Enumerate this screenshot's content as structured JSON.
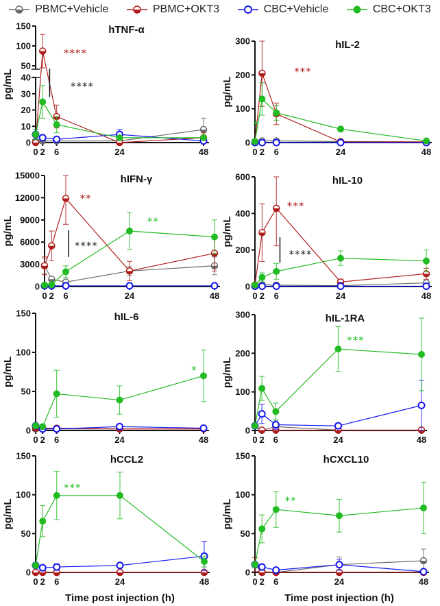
{
  "legend": [
    {
      "name": "PBMC+Vehicle",
      "color": "#6b6b6b",
      "marker": "half-filled-circle"
    },
    {
      "name": "PBMC+OKT3",
      "color": "#b01c1c",
      "marker": "half-filled-circle"
    },
    {
      "name": "CBC+Vehicle",
      "color": "#1515f0",
      "marker": "open-circle"
    },
    {
      "name": "CBC+OKT3",
      "color": "#22bb22",
      "marker": "filled-circle"
    }
  ],
  "chart_data": [
    {
      "type": "line",
      "title": "hTNF-α",
      "ylabel": "pg/mL",
      "xlabel": "",
      "x": [
        0,
        2,
        6,
        24,
        48
      ],
      "xticks": [
        "0",
        "2",
        "6",
        "24",
        "48"
      ],
      "ylim": [
        0,
        150
      ],
      "axis_break": [
        40,
        50
      ],
      "yticks": [
        "0",
        "10",
        "20",
        "30",
        "40",
        "50",
        "100",
        "150"
      ],
      "series": [
        {
          "name": "PBMC+Vehicle",
          "values": [
            1,
            1,
            1,
            1,
            8
          ],
          "error": [
            0,
            0,
            0,
            0,
            7
          ]
        },
        {
          "name": "PBMC+OKT3",
          "values": [
            0,
            87,
            16,
            0,
            3
          ],
          "error": [
            0,
            42,
            7,
            0,
            3
          ]
        },
        {
          "name": "CBC+Vehicle",
          "values": [
            5,
            3,
            2,
            5,
            1
          ],
          "error": [
            3,
            0.5,
            0.5,
            3,
            0
          ]
        },
        {
          "name": "CBC+OKT3",
          "values": [
            5,
            25,
            11,
            3,
            3
          ],
          "error": [
            3,
            10,
            5,
            1,
            1
          ]
        }
      ],
      "annotations": [
        {
          "text": "****",
          "x": 8,
          "y": 84,
          "color": "#b01c1c"
        },
        {
          "text": "****",
          "x": 10,
          "y": 35,
          "color": "#222222",
          "bracket": [
            4,
            43,
            28
          ]
        }
      ]
    },
    {
      "type": "line",
      "title": "hIL-2",
      "ylabel": "pg/mL",
      "xlabel": "",
      "x": [
        0,
        2,
        6,
        24,
        48
      ],
      "xticks": [
        "0",
        "2",
        "6",
        "24",
        "48"
      ],
      "ylim": [
        0,
        300
      ],
      "yticks": [
        "0",
        "100",
        "200",
        "300"
      ],
      "series": [
        {
          "name": "PBMC+Vehicle",
          "values": [
            3,
            5,
            5,
            3,
            2
          ],
          "error": [
            0,
            0,
            0,
            0,
            0
          ]
        },
        {
          "name": "PBMC+OKT3",
          "values": [
            2,
            205,
            85,
            2,
            2
          ],
          "error": [
            0,
            98,
            32,
            0,
            0
          ]
        },
        {
          "name": "CBC+Vehicle",
          "values": [
            0,
            0,
            0,
            0,
            0
          ],
          "error": [
            0,
            0,
            0,
            0,
            0
          ]
        },
        {
          "name": "CBC+OKT3",
          "values": [
            3,
            129,
            88,
            40,
            5
          ],
          "error": [
            0,
            48,
            22,
            7,
            0
          ]
        }
      ],
      "annotations": [
        {
          "text": "***",
          "x": 11,
          "y": 212,
          "color": "#b01c1c"
        },
        {
          "text": "*",
          "x": -0.5,
          "y": 55,
          "color": "#22bb22"
        }
      ]
    },
    {
      "type": "line",
      "title": "hIFN-γ",
      "ylabel": "pg/mL",
      "xlabel": "",
      "x": [
        0,
        2,
        6,
        24,
        48
      ],
      "xticks": [
        "0",
        "2",
        "6",
        "24",
        "48"
      ],
      "ylim": [
        0,
        15000
      ],
      "yticks": [
        "0",
        "3000",
        "6000",
        "9000",
        "12000",
        "15000"
      ],
      "series": [
        {
          "name": "PBMC+Vehicle",
          "values": [
            2800,
            1000,
            600,
            2100,
            2800
          ],
          "error": [
            1000,
            200,
            200,
            600,
            1200
          ]
        },
        {
          "name": "PBMC+OKT3",
          "values": [
            2800,
            5500,
            11900,
            2100,
            4500
          ],
          "error": [
            1200,
            2000,
            3500,
            1300,
            2400
          ]
        },
        {
          "name": "CBC+Vehicle",
          "values": [
            100,
            100,
            100,
            100,
            100
          ],
          "error": [
            0,
            0,
            0,
            0,
            0
          ]
        },
        {
          "name": "CBC+OKT3",
          "values": [
            200,
            250,
            2000,
            7500,
            6700
          ],
          "error": [
            0,
            0,
            800,
            2500,
            2300
          ]
        }
      ],
      "annotations": [
        {
          "text": "**",
          "x": 10,
          "y": 12000,
          "color": "#b01c1c"
        },
        {
          "text": "**",
          "x": 29,
          "y": 8900,
          "color": "#22bb22"
        },
        {
          "text": "****",
          "x": 8.5,
          "y": 5600,
          "color": "#222222",
          "bracket": [
            6.8,
            7600,
            4000
          ]
        }
      ]
    },
    {
      "type": "line",
      "title": "hIL-10",
      "ylabel": "pg/mL",
      "xlabel": "",
      "x": [
        0,
        2,
        6,
        24,
        48
      ],
      "xticks": [
        "0",
        "2",
        "6",
        "24",
        "48"
      ],
      "ylim": [
        0,
        600
      ],
      "yticks": [
        "0",
        "200",
        "400",
        "600"
      ],
      "series": [
        {
          "name": "PBMC+Vehicle",
          "values": [
            8,
            10,
            8,
            5,
            20
          ],
          "error": [
            0,
            3,
            2,
            2,
            5
          ]
        },
        {
          "name": "PBMC+OKT3",
          "values": [
            8,
            295,
            428,
            25,
            70
          ],
          "error": [
            0,
            158,
            205,
            15,
            30
          ]
        },
        {
          "name": "CBC+Vehicle",
          "values": [
            2,
            2,
            2,
            2,
            2
          ],
          "error": [
            0,
            0,
            0,
            0,
            0
          ]
        },
        {
          "name": "CBC+OKT3",
          "values": [
            8,
            50,
            83,
            155,
            140
          ],
          "error": [
            0,
            25,
            43,
            40,
            60
          ]
        }
      ],
      "annotations": [
        {
          "text": "***",
          "x": 9,
          "y": 445,
          "color": "#b01c1c"
        },
        {
          "text": "****",
          "x": 9.5,
          "y": 180,
          "color": "#222222",
          "bracket": [
            7,
            270,
            130
          ]
        }
      ]
    },
    {
      "type": "line",
      "title": "hIL-6",
      "ylabel": "pg/mL",
      "xlabel": "",
      "x": [
        0,
        2,
        6,
        24,
        48
      ],
      "xticks": [
        "0",
        "2",
        "6",
        "24",
        "48"
      ],
      "ylim": [
        0,
        150
      ],
      "yticks": [
        "0",
        "50",
        "100",
        "150"
      ],
      "series": [
        {
          "name": "PBMC+Vehicle",
          "values": [
            2,
            2,
            2,
            2,
            2
          ],
          "error": [
            0,
            0,
            0,
            0,
            0
          ]
        },
        {
          "name": "PBMC+OKT3",
          "values": [
            3,
            3,
            3,
            2,
            2
          ],
          "error": [
            0,
            0,
            0,
            0,
            0
          ]
        },
        {
          "name": "CBC+Vehicle",
          "values": [
            6,
            2,
            2,
            5,
            3
          ],
          "error": [
            3,
            0,
            0,
            0,
            0
          ]
        },
        {
          "name": "CBC+OKT3",
          "values": [
            6,
            5,
            47,
            39,
            70
          ],
          "error": [
            3,
            0,
            30,
            18,
            33
          ]
        }
      ],
      "annotations": [
        {
          "text": "*",
          "x": 44.5,
          "y": 78,
          "color": "#22bb22"
        }
      ]
    },
    {
      "type": "line",
      "title": "hIL-1RA",
      "ylabel": "pg/mL",
      "xlabel": "",
      "x": [
        0,
        2,
        6,
        24,
        48
      ],
      "xticks": [
        "0",
        "2",
        "6",
        "24",
        "48"
      ],
      "ylim": [
        0,
        300
      ],
      "yticks": [
        "0",
        "100",
        "200",
        "300"
      ],
      "series": [
        {
          "name": "PBMC+Vehicle",
          "values": [
            12,
            1,
            10,
            1,
            1
          ],
          "error": [
            0,
            0,
            0,
            0,
            0
          ]
        },
        {
          "name": "PBMC+OKT3",
          "values": [
            12,
            1,
            1,
            1,
            1
          ],
          "error": [
            0,
            0,
            0,
            0,
            0
          ]
        },
        {
          "name": "CBC+Vehicle",
          "values": [
            12,
            43,
            15,
            12,
            65
          ],
          "error": [
            0,
            25,
            12,
            7,
            65
          ]
        },
        {
          "name": "CBC+OKT3",
          "values": [
            12,
            109,
            49,
            211,
            197
          ],
          "error": [
            0,
            31,
            22,
            58,
            94
          ]
        }
      ],
      "annotations": [
        {
          "text": "***",
          "x": 26.5,
          "y": 235,
          "color": "#22bb22"
        }
      ]
    },
    {
      "type": "line",
      "title": "hCCL2",
      "ylabel": "pg/mL",
      "xlabel": "Time post injection (h)",
      "x": [
        0,
        2,
        6,
        24,
        48
      ],
      "xticks": [
        "0",
        "2",
        "6",
        "24",
        "48"
      ],
      "ylim": [
        0,
        150
      ],
      "yticks": [
        "0",
        "50",
        "100",
        "150"
      ],
      "series": [
        {
          "name": "PBMC+Vehicle",
          "values": [
            0,
            0,
            0,
            0,
            0
          ],
          "error": [
            0,
            0,
            0,
            0,
            0
          ]
        },
        {
          "name": "PBMC+OKT3",
          "values": [
            0,
            0,
            0,
            0,
            0
          ],
          "error": [
            0,
            0,
            0,
            0,
            0
          ]
        },
        {
          "name": "CBC+Vehicle",
          "values": [
            9,
            6,
            7,
            9,
            21
          ],
          "error": [
            0,
            0,
            4,
            3,
            19
          ]
        },
        {
          "name": "CBC+OKT3",
          "values": [
            9,
            66,
            99,
            99,
            14
          ],
          "error": [
            0,
            20,
            31,
            30,
            7
          ]
        }
      ],
      "annotations": [
        {
          "text": "***",
          "x": 8,
          "y": 110,
          "color": "#22bb22"
        }
      ]
    },
    {
      "type": "line",
      "title": "hCXCL10",
      "ylabel": "pg/mL",
      "xlabel": "Time post injection (h)",
      "x": [
        0,
        2,
        6,
        24,
        48
      ],
      "xticks": [
        "0",
        "2",
        "6",
        "24",
        "48"
      ],
      "ylim": [
        0,
        150
      ],
      "yticks": [
        "0",
        "50",
        "100",
        "150"
      ],
      "series": [
        {
          "name": "PBMC+Vehicle",
          "values": [
            10,
            1,
            0,
            10,
            15
          ],
          "error": [
            0,
            0,
            0,
            10,
            15
          ]
        },
        {
          "name": "PBMC+OKT3",
          "values": [
            10,
            0,
            0,
            0,
            0
          ],
          "error": [
            9,
            0,
            0,
            0,
            0
          ]
        },
        {
          "name": "CBC+Vehicle",
          "values": [
            10,
            7,
            3,
            10,
            1
          ],
          "error": [
            0,
            0,
            0,
            7,
            0
          ]
        },
        {
          "name": "CBC+OKT3",
          "values": [
            10,
            56,
            81,
            73,
            83
          ],
          "error": [
            0,
            18,
            23,
            21,
            33
          ]
        }
      ],
      "annotations": [
        {
          "text": "**",
          "x": 8.5,
          "y": 93,
          "color": "#22bb22"
        }
      ]
    }
  ]
}
